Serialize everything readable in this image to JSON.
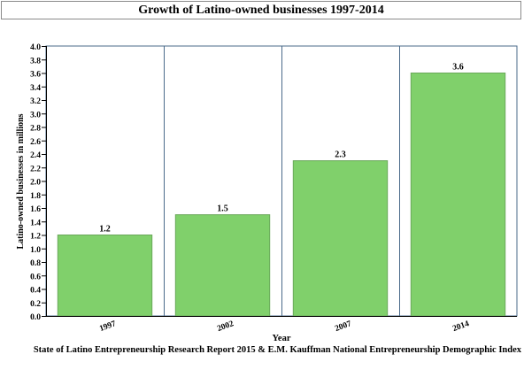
{
  "chart_data": {
    "type": "bar",
    "title": "Growth of Latino-owned businesses 1997-2014",
    "xlabel": "Year",
    "ylabel": "Latino-owned businesses in millions",
    "categories": [
      "1997",
      "2002",
      "2007",
      "2014"
    ],
    "values": [
      1.2,
      1.5,
      2.3,
      3.6
    ],
    "data_labels": [
      "1.2",
      "1.5",
      "2.3",
      "3.6"
    ],
    "ylim": [
      0,
      4.0
    ],
    "y_ticks": [
      "0.0",
      "0.2",
      "0.4",
      "0.6",
      "0.8",
      "1.0",
      "1.2",
      "1.4",
      "1.6",
      "1.8",
      "2.0",
      "2.2",
      "2.4",
      "2.6",
      "2.8",
      "3.0",
      "3.2",
      "3.4",
      "3.6",
      "3.8",
      "4.0"
    ],
    "grid": "vertical lines between categories",
    "bar_color": "#80d06b",
    "bar_border": "#6aa85a",
    "grid_color": "#4a6a8a"
  },
  "caption": "State of Latino Entrepreneurship Research Report 2015 & E.M. Kauffman National Entrepreneurship Demographic Index"
}
